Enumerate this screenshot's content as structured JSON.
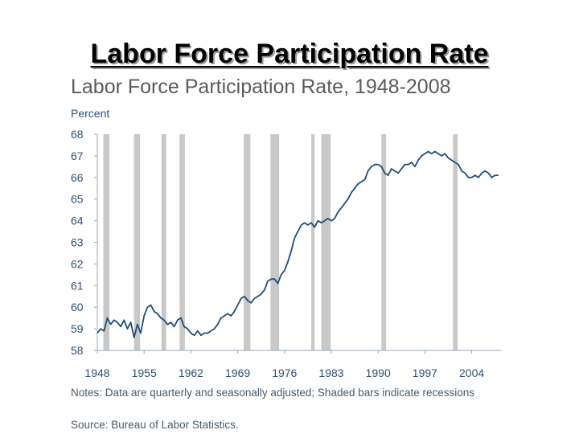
{
  "slide_title": "Labor Force Participation Rate",
  "notes": "Notes: Data are quarterly and seasonally adjusted; Shaded bars indicate recessions",
  "source": "Source: Bureau of Labor Statistics.",
  "colors": {
    "line": "#1f4e79",
    "recession": "#c8c8c8",
    "axis_text": "#2e5078"
  },
  "chart_data": {
    "type": "line",
    "title": "Labor Force Participation Rate, 1948-2008",
    "ylabel": "Percent",
    "xlabel": "",
    "ylim": [
      58,
      68
    ],
    "xlim": [
      1948,
      2008.5
    ],
    "yticks": [
      58,
      59,
      60,
      61,
      62,
      63,
      64,
      65,
      66,
      67,
      68
    ],
    "xticks": [
      1948,
      1955,
      1962,
      1969,
      1976,
      1983,
      1990,
      1997,
      2004
    ],
    "grid": false,
    "recessions": [
      [
        1948.9,
        1949.8
      ],
      [
        1953.5,
        1954.4
      ],
      [
        1957.6,
        1958.3
      ],
      [
        1960.3,
        1961.1
      ],
      [
        1969.9,
        1970.9
      ],
      [
        1973.9,
        1975.2
      ],
      [
        1980.0,
        1980.5
      ],
      [
        1981.5,
        1982.9
      ],
      [
        1990.5,
        1991.2
      ],
      [
        2001.2,
        2001.9
      ]
    ],
    "series": [
      {
        "x": [
          1948,
          1948.5,
          1949,
          1949.5,
          1950,
          1950.5,
          1951,
          1951.5,
          1952,
          1952.5,
          1953,
          1953.5,
          1954,
          1954.5,
          1955,
          1955.5,
          1956,
          1956.5,
          1957,
          1957.5,
          1958,
          1958.5,
          1959,
          1959.5,
          1960,
          1960.5,
          1961,
          1961.5,
          1962,
          1962.5,
          1963,
          1963.5,
          1964,
          1964.5,
          1965,
          1965.5,
          1966,
          1966.5,
          1967,
          1967.5,
          1968,
          1968.5,
          1969,
          1969.5,
          1970,
          1970.5,
          1971,
          1971.5,
          1972,
          1972.5,
          1973,
          1973.5,
          1974,
          1974.5,
          1975,
          1975.5,
          1976,
          1976.5,
          1977,
          1977.5,
          1978,
          1978.5,
          1979,
          1979.5,
          1980,
          1980.5,
          1981,
          1981.5,
          1982,
          1982.5,
          1983,
          1983.5,
          1984,
          1984.5,
          1985,
          1985.5,
          1986,
          1986.5,
          1987,
          1987.5,
          1988,
          1988.5,
          1989,
          1989.5,
          1990,
          1990.5,
          1991,
          1991.5,
          1992,
          1992.5,
          1993,
          1993.5,
          1994,
          1994.5,
          1995,
          1995.5,
          1996,
          1996.5,
          1997,
          1997.5,
          1998,
          1998.5,
          1999,
          1999.5,
          2000,
          2000.5,
          2001,
          2001.5,
          2002,
          2002.5,
          2003,
          2003.5,
          2004,
          2004.5,
          2005,
          2005.5,
          2006,
          2006.5,
          2007,
          2007.5,
          2008
        ],
        "values": [
          58.8,
          59.0,
          58.9,
          59.5,
          59.2,
          59.4,
          59.3,
          59.1,
          59.4,
          59.0,
          59.3,
          58.6,
          59.2,
          58.8,
          59.6,
          60.0,
          60.1,
          59.8,
          59.7,
          59.5,
          59.4,
          59.2,
          59.3,
          59.1,
          59.4,
          59.5,
          59.1,
          59.0,
          58.8,
          58.7,
          58.9,
          58.7,
          58.8,
          58.8,
          58.9,
          59.0,
          59.2,
          59.5,
          59.6,
          59.7,
          59.6,
          59.8,
          60.1,
          60.4,
          60.5,
          60.3,
          60.2,
          60.4,
          60.5,
          60.6,
          60.8,
          61.2,
          61.3,
          61.3,
          61.1,
          61.5,
          61.7,
          62.1,
          62.6,
          63.2,
          63.5,
          63.8,
          63.9,
          63.8,
          63.9,
          63.7,
          64.0,
          63.9,
          64.0,
          64.1,
          64.0,
          64.1,
          64.4,
          64.6,
          64.8,
          65.0,
          65.3,
          65.5,
          65.7,
          65.8,
          65.9,
          66.3,
          66.5,
          66.6,
          66.6,
          66.5,
          66.2,
          66.1,
          66.4,
          66.3,
          66.2,
          66.4,
          66.6,
          66.6,
          66.7,
          66.5,
          66.8,
          67.0,
          67.1,
          67.2,
          67.1,
          67.2,
          67.1,
          67.0,
          67.1,
          66.9,
          66.8,
          66.7,
          66.6,
          66.3,
          66.2,
          66.0,
          66.0,
          66.1,
          66.0,
          66.2,
          66.3,
          66.2,
          66.0,
          66.1,
          66.1
        ]
      }
    ]
  }
}
